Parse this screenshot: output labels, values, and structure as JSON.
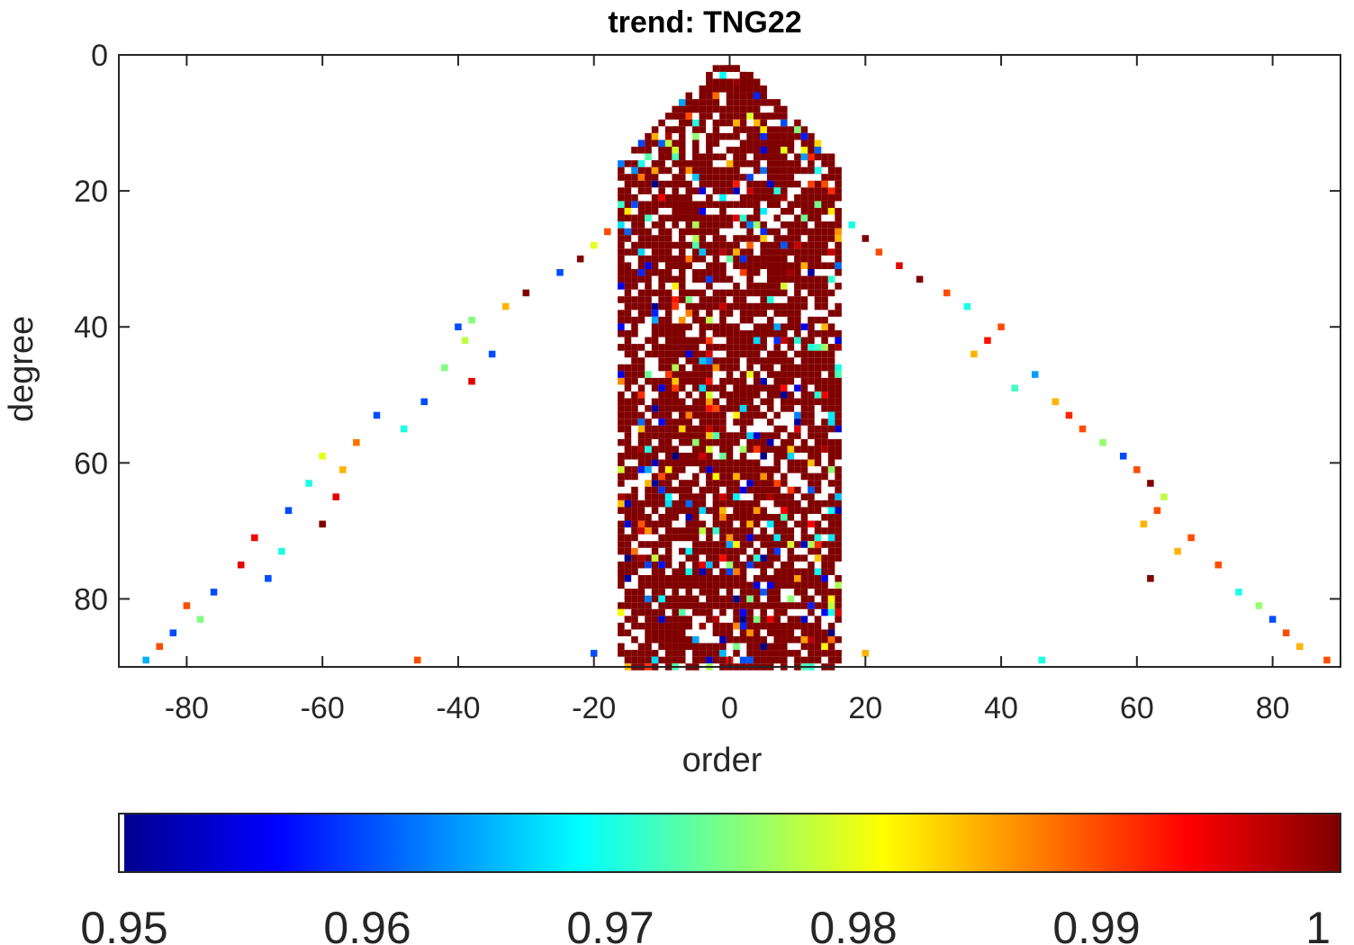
{
  "chart_data": {
    "type": "heatmap",
    "title": "trend: TNG22",
    "xlabel": "order",
    "ylabel": "degree",
    "xlim": [
      -90,
      90
    ],
    "ylim": [
      0,
      90
    ],
    "y_reversed": true,
    "xticks": [
      -80,
      -60,
      -40,
      -20,
      0,
      20,
      40,
      60,
      80
    ],
    "yticks": [
      0,
      20,
      40,
      60,
      80
    ],
    "colormap": "jet",
    "colorbar": {
      "orientation": "horizontal",
      "placement": "bottom",
      "clim": [
        0.95,
        1
      ],
      "ticks": [
        0.95,
        0.96,
        0.97,
        0.98,
        0.99,
        1
      ],
      "tick_labels": [
        "0.95",
        "0.96",
        "0.97",
        "0.98",
        "0.99",
        "1"
      ]
    },
    "grid": false,
    "cell_pattern": {
      "description": "triangular coefficient map over |order| <= degree <= 90; dense band of values near 1 for |order| below about 16, scattered values elsewhere",
      "dense_core_half_width_order": 16,
      "dense_core_value": 1.0
    },
    "series": [
      {
        "cells": [
          [
            0,
            2,
            1.0
          ],
          [
            1,
            2,
            1.0
          ],
          [
            2,
            3,
            1.0
          ],
          [
            -2,
            4,
            1.0
          ],
          [
            -1,
            4,
            1.0
          ],
          [
            0,
            4,
            1.0
          ],
          [
            1,
            4,
            0.999
          ],
          [
            2,
            4,
            1.0
          ],
          [
            3,
            4,
            1.0
          ],
          [
            -3,
            5,
            1.0
          ],
          [
            -1,
            5,
            1.0
          ],
          [
            2,
            5,
            1.0
          ],
          [
            4,
            6,
            0.958
          ],
          [
            -4,
            6,
            1.0
          ],
          [
            0,
            6,
            1.0
          ],
          [
            5,
            7,
            1.0
          ],
          [
            -5,
            8,
            1.0
          ],
          [
            3,
            8,
            1.0
          ],
          [
            -6,
            9,
            0.99
          ],
          [
            6,
            9,
            1.0
          ],
          [
            -7,
            10,
            1.0
          ],
          [
            1,
            10,
            0.985
          ],
          [
            8,
            10,
            0.96
          ],
          [
            10,
            11,
            0.975
          ],
          [
            -8,
            11,
            1.0
          ],
          [
            4,
            12,
            1.0
          ],
          [
            -9,
            13,
            0.978
          ],
          [
            9,
            13,
            1.0
          ],
          [
            -10,
            14,
            1.0
          ],
          [
            12,
            15,
            0.992
          ],
          [
            -11,
            16,
            1.0
          ],
          [
            0,
            16,
            0.985
          ],
          [
            13,
            17,
            0.97
          ],
          [
            -12,
            18,
            1.0
          ],
          [
            14,
            19,
            0.99
          ],
          [
            -13,
            20,
            1.0
          ],
          [
            15,
            21,
            1.0
          ],
          [
            -14,
            22,
            0.96
          ],
          [
            16,
            23,
            1.0
          ],
          [
            -16,
            24,
            1.0
          ],
          [
            18,
            25,
            0.97
          ],
          [
            -18,
            26,
            0.99
          ],
          [
            20,
            27,
            1.0
          ],
          [
            -20,
            28,
            0.98
          ],
          [
            22,
            29,
            0.99
          ],
          [
            -22,
            30,
            1.0
          ],
          [
            25,
            31,
            0.995
          ],
          [
            -25,
            32,
            0.96
          ],
          [
            28,
            33,
            1.0
          ],
          [
            -30,
            35,
            1.0
          ],
          [
            32,
            35,
            0.99
          ],
          [
            -33,
            37,
            0.985
          ],
          [
            35,
            37,
            0.97
          ],
          [
            -38,
            39,
            0.975
          ],
          [
            40,
            40,
            0.99
          ],
          [
            -40,
            40,
            0.96
          ],
          [
            -39,
            42,
            0.978
          ],
          [
            38,
            42,
            0.993
          ],
          [
            -35,
            44,
            0.96
          ],
          [
            36,
            44,
            0.985
          ],
          [
            -42,
            46,
            0.975
          ],
          [
            45,
            47,
            0.964
          ],
          [
            -38,
            48,
            0.995
          ],
          [
            42,
            49,
            0.972
          ],
          [
            -45,
            51,
            0.96
          ],
          [
            48,
            51,
            0.985
          ],
          [
            -52,
            53,
            0.96
          ],
          [
            50,
            53,
            0.992
          ],
          [
            -48,
            55,
            0.97
          ],
          [
            52,
            55,
            0.99
          ],
          [
            -55,
            57,
            0.988
          ],
          [
            55,
            57,
            0.976
          ],
          [
            -60,
            59,
            0.98
          ],
          [
            58,
            59,
            0.96
          ],
          [
            -57,
            61,
            0.985
          ],
          [
            60,
            61,
            0.99
          ],
          [
            -62,
            63,
            0.97
          ],
          [
            62,
            63,
            1.0
          ],
          [
            -58,
            65,
            0.995
          ],
          [
            64,
            65,
            0.978
          ],
          [
            -65,
            67,
            0.96
          ],
          [
            63,
            67,
            0.99
          ],
          [
            -60,
            69,
            1.0
          ],
          [
            61,
            69,
            0.985
          ],
          [
            -70,
            71,
            0.994
          ],
          [
            68,
            71,
            0.99
          ],
          [
            -66,
            73,
            0.97
          ],
          [
            66,
            73,
            0.985
          ],
          [
            -72,
            75,
            0.995
          ],
          [
            72,
            75,
            0.99
          ],
          [
            -68,
            77,
            0.96
          ],
          [
            62,
            77,
            1.0
          ],
          [
            -76,
            79,
            0.96
          ],
          [
            75,
            79,
            0.97
          ],
          [
            -80,
            81,
            0.99
          ],
          [
            78,
            81,
            0.976
          ],
          [
            -78,
            83,
            0.975
          ],
          [
            80,
            83,
            0.96
          ],
          [
            -82,
            85,
            0.96
          ],
          [
            82,
            85,
            0.99
          ],
          [
            -84,
            87,
            0.99
          ],
          [
            84,
            87,
            0.985
          ],
          [
            -86,
            89,
            0.965
          ],
          [
            88,
            89,
            0.99
          ],
          [
            -46,
            89,
            0.99
          ],
          [
            46,
            89,
            0.97
          ],
          [
            0,
            89,
            0.994
          ],
          [
            -20,
            88,
            0.96
          ],
          [
            20,
            88,
            0.985
          ]
        ]
      }
    ]
  }
}
